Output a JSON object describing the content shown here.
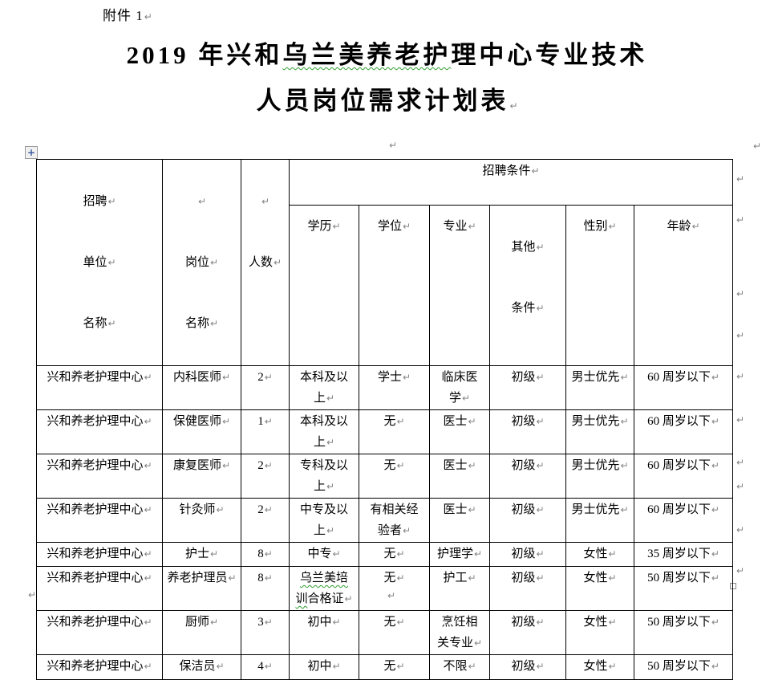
{
  "icons": {
    "paragraph_mark": "↵",
    "table_move_handle": "+"
  },
  "colors": {
    "text": "#000000",
    "paragraph_mark": "#848484",
    "spellcheck_underline": "#2f9e2f",
    "table_border": "#000000",
    "page_background": "#ffffff"
  },
  "doc": {
    "attachment_label": "附件 1",
    "title": {
      "line1_prefix": "2019 年兴和",
      "line1_misspelled": "乌兰美养老护",
      "line1_suffix": "理中心专业技术",
      "line2": "人员岗位需求计划表"
    }
  },
  "table": {
    "header": {
      "unit_lines": [
        "招聘",
        "单位",
        "名称"
      ],
      "position_lines": [
        "岗位",
        "名称"
      ],
      "count_label": "人数",
      "conditions_label": "招聘条件",
      "education": "学历",
      "degree": "学位",
      "major": "专业",
      "other_lines": [
        "其他",
        "条件"
      ],
      "gender": "性别",
      "age": "年龄"
    },
    "rows": [
      {
        "unit": "兴和养老护理中心",
        "position": "内科医师",
        "count": "2",
        "education": "本科及以\n上",
        "degree": "学士",
        "major": "临床医\n学",
        "other": "初级",
        "gender": "男士优先",
        "age": "60 周岁以下"
      },
      {
        "unit": "兴和养老护理中心",
        "position": "保健医师",
        "count": "1",
        "education": "本科及以\n上",
        "degree": "无",
        "major": "医士",
        "other": "初级",
        "gender": "男士优先",
        "age": "60 周岁以下"
      },
      {
        "unit": "兴和养老护理中心",
        "position": "康复医师",
        "count": "2",
        "education": "专科及以\n上",
        "degree": "无",
        "major": "医士",
        "other": "初级",
        "gender": "男士优先",
        "age": "60 周岁以下"
      },
      {
        "unit": "兴和养老护理中心",
        "position": "针灸师",
        "count": "2",
        "education": "中专及以\n上",
        "degree": "有相关经\n验者",
        "major": "医士",
        "other": "初级",
        "gender": "男士优先",
        "age": "60 周岁以下"
      },
      {
        "unit": "兴和养老护理中心",
        "position": "护士",
        "count": "8",
        "education": "中专",
        "degree": "无",
        "major": "护理学",
        "other": "初级",
        "gender": "女性",
        "age": "35 周岁以下"
      },
      {
        "unit": "兴和养老护理中心",
        "position": "养老护理员",
        "count": "8",
        "education_wavy": "乌兰美培\n训",
        "education_rest": "合格证",
        "degree": "无",
        "major": "护工",
        "other": "初级",
        "gender": "女性",
        "age": "50 周岁以下"
      },
      {
        "unit": "兴和养老护理中心",
        "position": "厨师",
        "count": "3",
        "education": "初中",
        "degree": "无",
        "major": "烹饪相\n关专业",
        "other": "初级",
        "gender": "女性",
        "age": "50 周岁以下"
      },
      {
        "unit": "兴和养老护理中心",
        "position": "保洁员",
        "count": "4",
        "education": "初中",
        "degree": "无",
        "major": "不限",
        "other": "初级",
        "gender": "女性",
        "age": "50 周岁以下"
      }
    ]
  }
}
